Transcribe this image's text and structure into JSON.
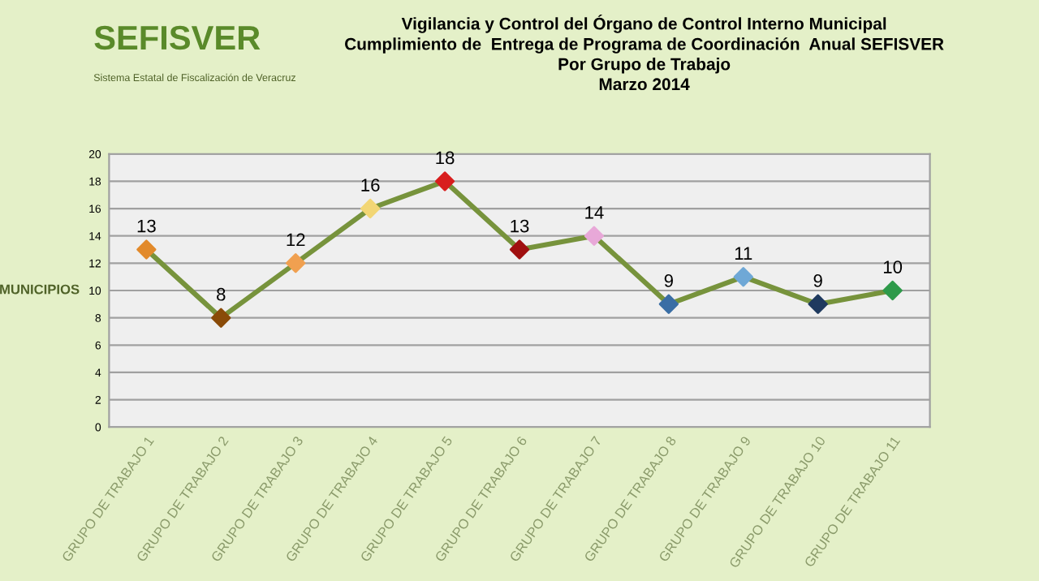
{
  "chart_data": {
    "type": "line",
    "title": "Vigilancia y Control del Órgano de Control Interno Municipal\nCumplimiento de  Entrega de Programa de Coordinación  Anual SEFISVER\nPor Grupo de Trabajo\nMarzo 2014",
    "ylabel": "MUNICIPIOS",
    "annotations": [
      "SEFISVER",
      "Sistema Estatal de Fiscalización de Veracruz"
    ],
    "categories": [
      "GRUPO DE TRABAJO 1",
      "GRUPO DE TRABAJO 2",
      "GRUPO DE TRABAJO 3",
      "GRUPO DE TRABAJO 4",
      "GRUPO DE TRABAJO 5",
      "GRUPO DE TRABAJO 6",
      "GRUPO DE TRABAJO 7",
      "GRUPO DE TRABAJO 8",
      "GRUPO DE TRABAJO 9",
      "GRUPO DE TRABAJO 10",
      "GRUPO DE TRABAJO 11"
    ],
    "series": [
      {
        "color": "#77933c",
        "values": [
          13,
          8,
          12,
          16,
          18,
          13,
          14,
          9,
          11,
          9,
          10
        ],
        "colors": [
          "#e28a2b",
          "#8a4b08",
          "#f0a050",
          "#f2d675",
          "#d81e1e",
          "#a01010",
          "#e8a8d8",
          "#3a6ea5",
          "#6fa8d6",
          "#1f3a5f",
          "#2e9a4a"
        ]
      }
    ],
    "ylim": [
      0,
      20
    ],
    "yticks": [
      0,
      2,
      4,
      6,
      8,
      10,
      12,
      14,
      16,
      18,
      20
    ],
    "grid": "y",
    "marker": "diamond",
    "line_style": "solid",
    "data_labels": true,
    "legend": false
  }
}
